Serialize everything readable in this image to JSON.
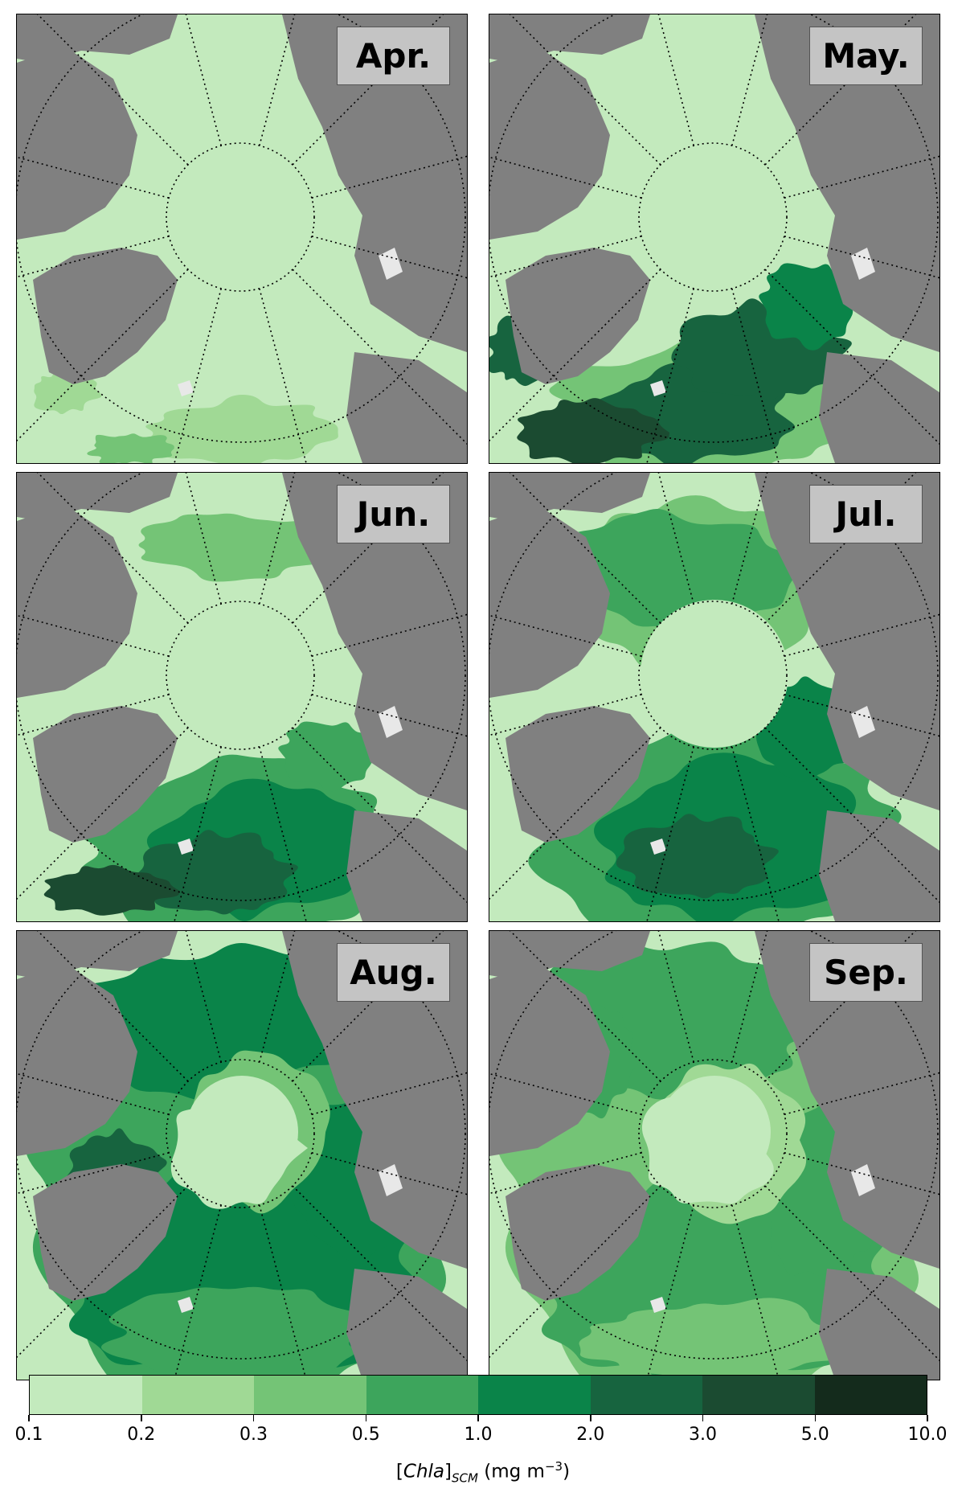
{
  "panels": [
    {
      "label": "Apr.",
      "level": 0
    },
    {
      "label": "May.",
      "level": 1
    },
    {
      "label": "Jun.",
      "level": 2
    },
    {
      "label": "Jul.",
      "level": 3
    },
    {
      "label": "Aug.",
      "level": 4
    },
    {
      "label": "Sep.",
      "level": 5
    }
  ],
  "colorbar": {
    "ticks": [
      "0.1",
      "0.2",
      "0.3",
      "0.5",
      "1.0",
      "2.0",
      "3.0",
      "5.0",
      "10.0"
    ],
    "colors": [
      "#c3eabd",
      "#a0d995",
      "#74c476",
      "#3da55c",
      "#0a8449",
      "#17643f",
      "#1b4b31",
      "#142b1c"
    ],
    "label_prefix": "[",
    "label_var": "Chla",
    "label_mid": "]",
    "label_sub": "SCM",
    "label_units": " (mg m",
    "label_exp": "−3",
    "label_end": ")"
  },
  "colors": {
    "land": "#808080",
    "ocean_base": "#c3eabd",
    "ice_white": "#e8e8e8"
  }
}
